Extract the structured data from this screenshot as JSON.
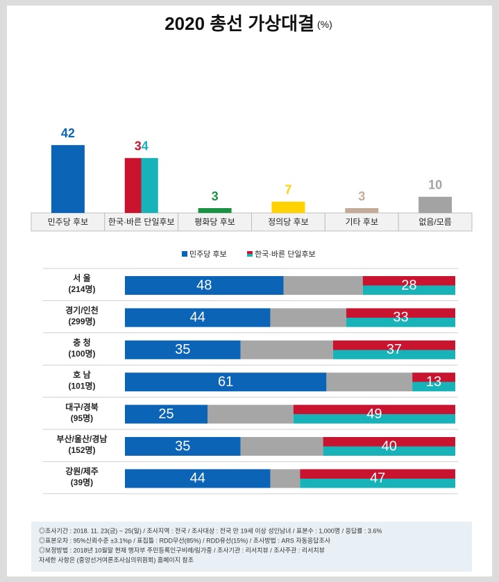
{
  "chart_data": [
    {
      "type": "bar",
      "title": "2020 총선 가상대결",
      "unit": "(%)",
      "categories": [
        "민주당 후보",
        "한국·바른 단일후보",
        "평화당 후보",
        "정의당 후보",
        "기타 후보",
        "없음/모름"
      ],
      "values": [
        42,
        34,
        3,
        7,
        3,
        10
      ],
      "colors": [
        "#0b64b6",
        [
          "#c8142f",
          "#18b3b8"
        ],
        "#1b9142",
        "#ffd200",
        "#c4aa98",
        "#a3a3a3"
      ]
    },
    {
      "type": "stacked_barh",
      "categories": [
        "서 울",
        "경기/인천",
        "충 청",
        "호 남",
        "대구/경북",
        "부산/울산/경남",
        "강원/제주"
      ],
      "category_notes": [
        "(214명)",
        "(299명)",
        "(100명)",
        "(101명)",
        "(95명)",
        "(152명)",
        "(39명)"
      ],
      "xlim": [
        0,
        100
      ],
      "series": [
        {
          "name": "민주당 후보",
          "color": "#0b64b6",
          "values": [
            48,
            44,
            35,
            61,
            25,
            35,
            44
          ],
          "show_labels": true
        },
        {
          "color": "#a6a6a6",
          "values": [
            24,
            23,
            28,
            26,
            26,
            25,
            9
          ],
          "show_labels": false
        },
        {
          "name": "한국·바른 단일후보",
          "color": [
            "#c8142f",
            "#18b3b8"
          ],
          "values": [
            28,
            33,
            37,
            13,
            49,
            40,
            47
          ],
          "show_labels": true
        }
      ]
    }
  ],
  "notes": [
    "◎조사기간 : 2018. 11. 23(금) ~ 25(일) / 조사지역 : 전국 / 조사대상 : 전국 만 19세 이상 성인남녀 / 표본수 : 1,000명 / 응답률 : 3.6%",
    "◎표본오차 : 95%신뢰수준 ±3.1%p / 표집틀 : RDD무선(85%) / RDD유선(15%) / 조사방법 : ARS 자동응답조사",
    "◎보정방법 : 2018년 10월말 현재 행자부 주민등록인구비례/림가중 / 조사기관 : 리서치뷰 / 조사주관 : 리서치뷰",
    "자세한 사항은 (중앙선거여론조사심의위원회) 홈페이지 참조"
  ]
}
